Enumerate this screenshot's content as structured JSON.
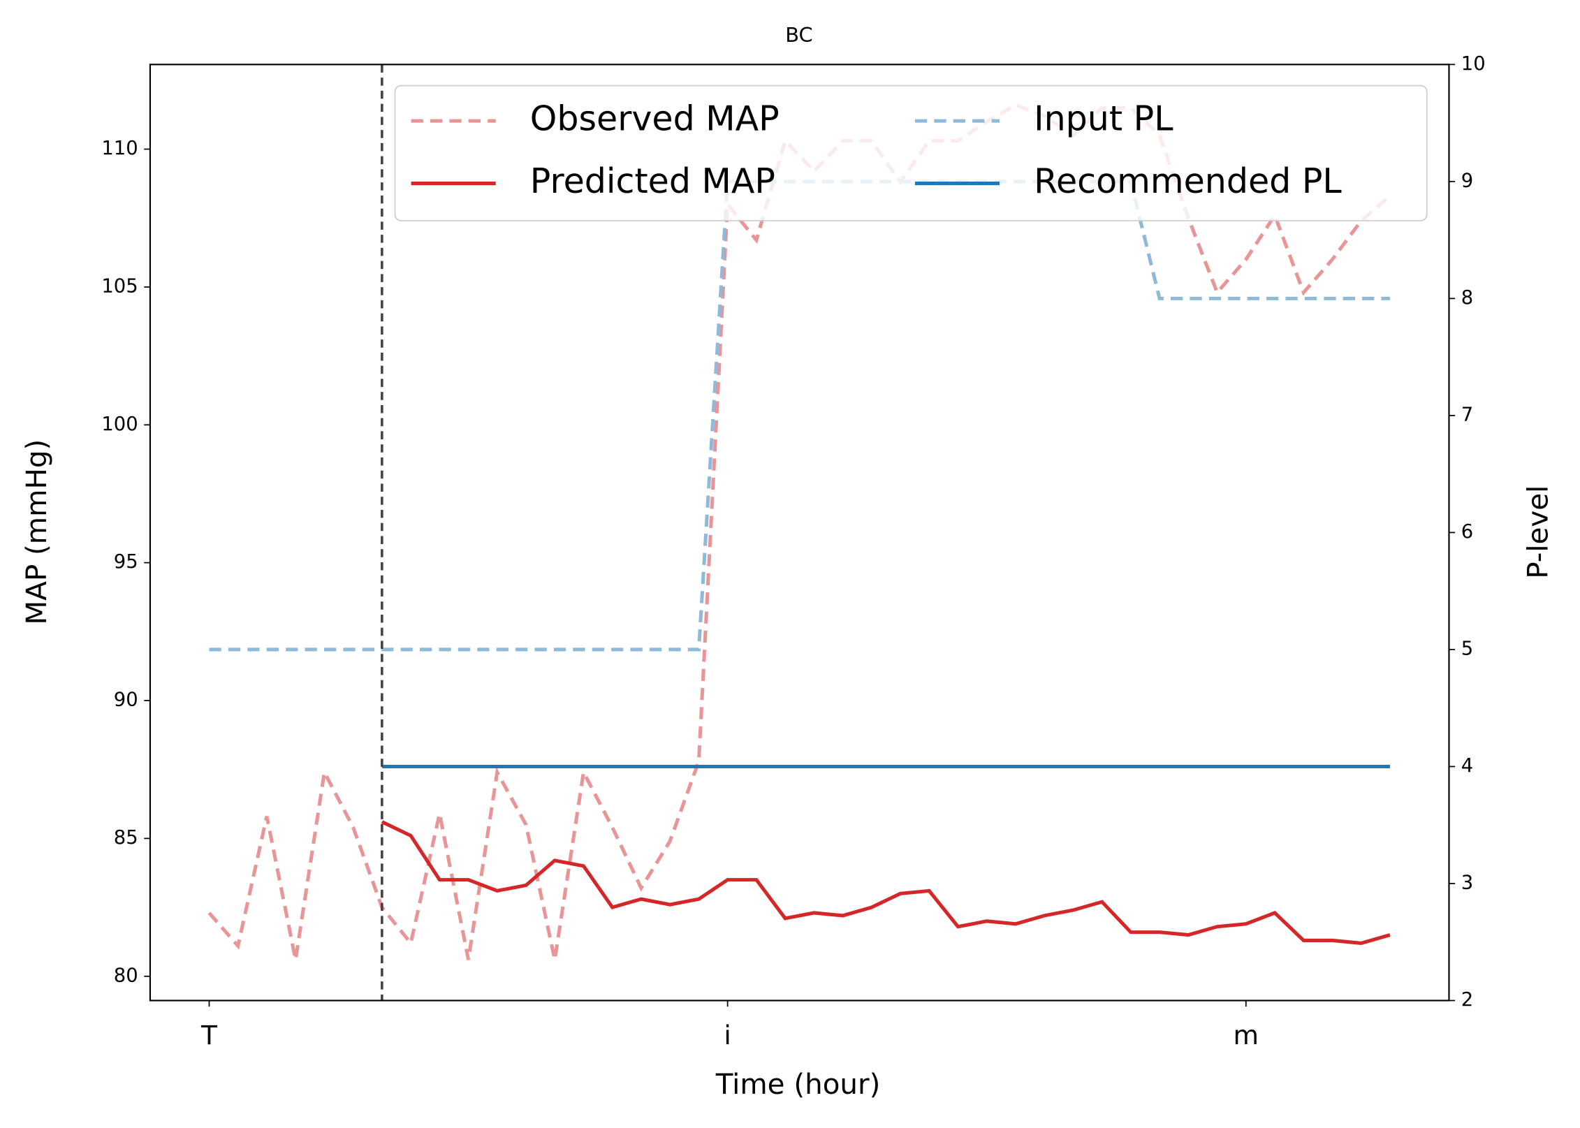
{
  "chart_data": {
    "type": "line",
    "title": "BC",
    "xlabel": "Time (hour)",
    "ylabel": "MAP (mmHg)",
    "y2label": "P-level",
    "x": [
      0,
      1,
      2,
      3,
      4,
      5,
      6,
      7,
      8,
      9,
      10,
      11,
      12,
      13,
      14,
      15,
      16,
      17,
      18,
      19,
      20,
      21,
      22,
      23,
      24,
      25,
      26,
      27,
      28,
      29,
      30,
      31,
      32,
      33,
      34,
      35,
      36,
      37,
      38,
      39,
      40,
      41
    ],
    "xlim": [
      -2.05,
      43.05
    ],
    "xticks": [
      {
        "value": 0,
        "label": "T"
      },
      {
        "value": 18,
        "label": "i"
      },
      {
        "value": 36,
        "label": "m"
      }
    ],
    "ylim": [
      79.12,
      113.07
    ],
    "yticks": [
      80,
      85,
      90,
      95,
      100,
      105,
      110
    ],
    "y2lim": [
      2,
      10
    ],
    "y2ticks": [
      2,
      3,
      4,
      5,
      6,
      7,
      8,
      9,
      10
    ],
    "vline": {
      "x": 6,
      "color": "#444444",
      "linestyle": "dashed"
    },
    "legend": {
      "loc": "upper right",
      "ncol": 2
    },
    "series": [
      {
        "name": "Observed MAP",
        "color": "#e99496",
        "linestyle": "dashed",
        "values": [
          82.3,
          81.1,
          85.8,
          80.6,
          87.4,
          85.4,
          82.5,
          81.2,
          85.9,
          80.6,
          87.4,
          85.5,
          80.6,
          87.4,
          85.4,
          83.2,
          84.9,
          87.8,
          108.0,
          106.7,
          110.3,
          109.2,
          110.3,
          110.3,
          108.8,
          110.3,
          110.3,
          111.0,
          111.6,
          111.2,
          110.5,
          111.5,
          111.5,
          110.5,
          107.5,
          104.8,
          106.0,
          107.6,
          104.8,
          106.0,
          107.4,
          108.3
        ]
      },
      {
        "name": "Predicted MAP",
        "color": "#d62728",
        "linestyle": "solid",
        "values": [
          null,
          null,
          null,
          null,
          null,
          null,
          85.6,
          85.1,
          83.5,
          83.5,
          83.1,
          83.3,
          84.2,
          84.0,
          82.5,
          82.8,
          82.6,
          82.8,
          83.5,
          83.5,
          82.1,
          82.3,
          82.2,
          82.5,
          83.0,
          83.1,
          81.8,
          82.0,
          81.9,
          82.2,
          82.4,
          82.7,
          81.6,
          81.6,
          81.5,
          81.8,
          81.9,
          82.3,
          81.3,
          81.3,
          81.2,
          81.5
        ]
      },
      {
        "name": "Input PL",
        "color": "#8fb9d9",
        "linestyle": "dashed",
        "axis": "y2",
        "values": [
          5,
          5,
          5,
          5,
          5,
          5,
          5,
          5,
          5,
          5,
          5,
          5,
          5,
          5,
          5,
          5,
          5,
          5,
          9,
          9,
          9,
          9,
          9,
          9,
          9,
          9,
          9,
          9,
          9,
          9,
          9,
          9,
          9,
          8,
          8,
          8,
          8,
          8,
          8,
          8,
          8,
          8
        ]
      },
      {
        "name": "Recommended PL",
        "color": "#1f77b4",
        "linestyle": "solid",
        "axis": "y2",
        "values": [
          null,
          null,
          null,
          null,
          null,
          null,
          4,
          4,
          4,
          4,
          4,
          4,
          4,
          4,
          4,
          4,
          4,
          4,
          4,
          4,
          4,
          4,
          4,
          4,
          4,
          4,
          4,
          4,
          4,
          4,
          4,
          4,
          4,
          4,
          4,
          4,
          4,
          4,
          4,
          4,
          4,
          4
        ]
      }
    ]
  }
}
